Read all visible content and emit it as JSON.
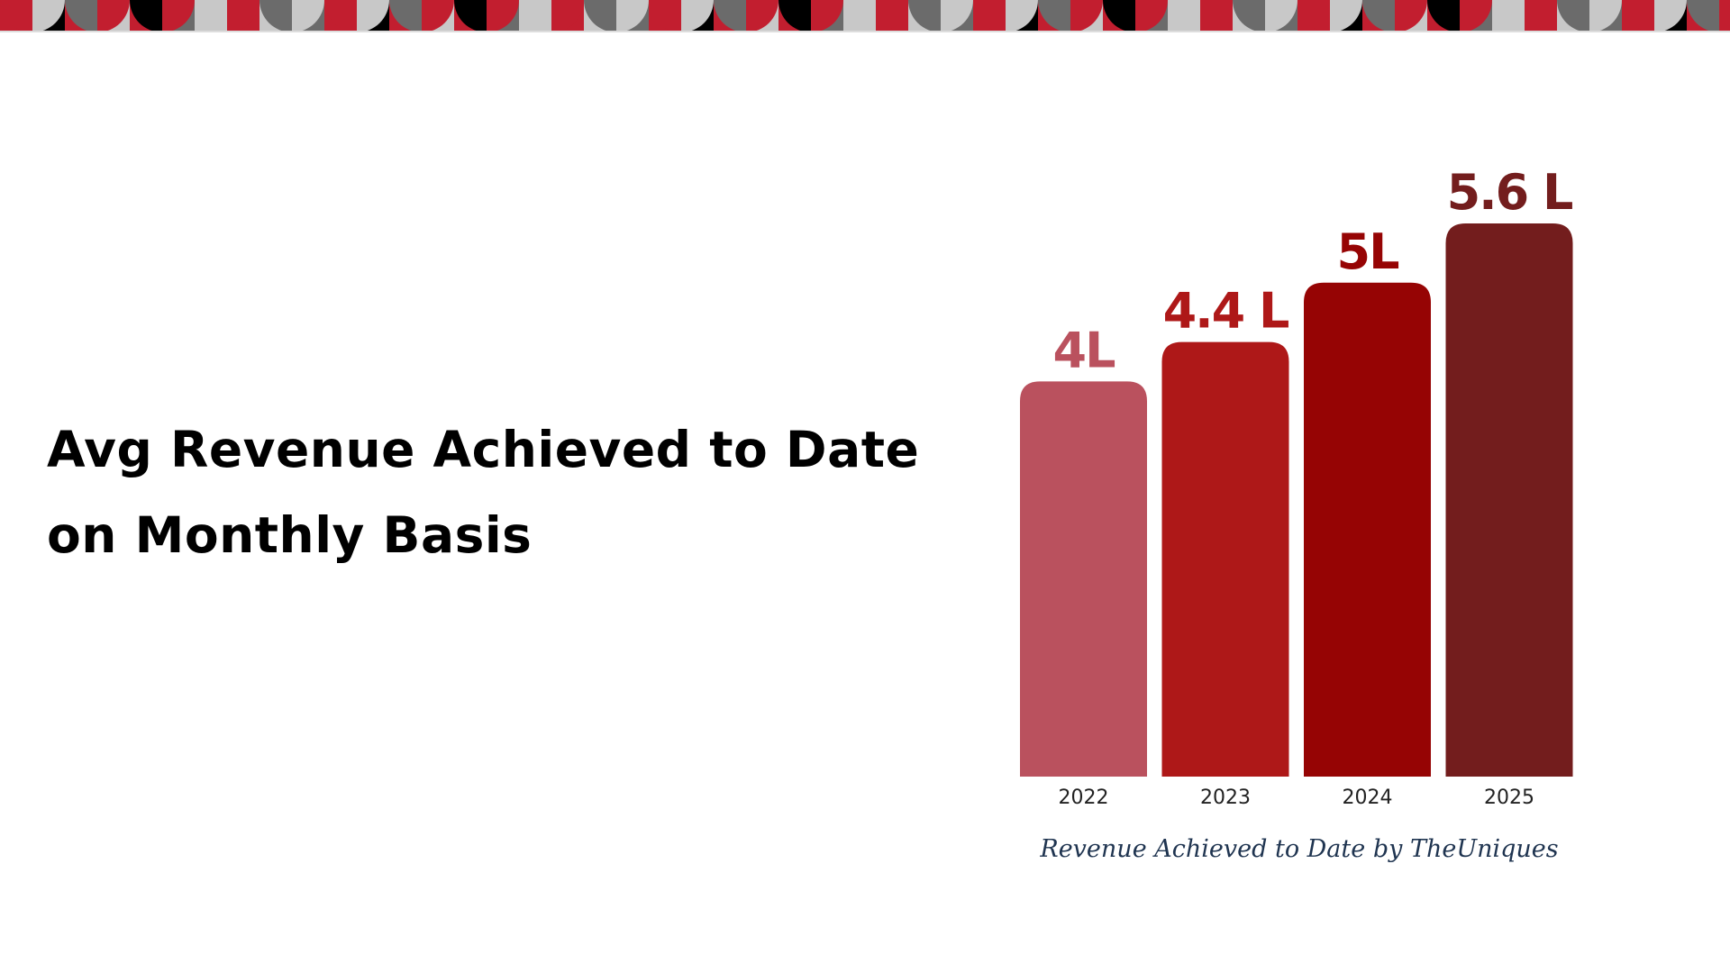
{
  "page": {
    "title_lines": [
      "Avg Revenue Achieved to Date",
      "on Monthly Basis"
    ]
  },
  "colors": {
    "pattern": [
      "#c21e2f",
      "#c8c8c8",
      "#6b6b6b",
      "#000000"
    ],
    "bars": [
      "#ba515e",
      "#ae1818",
      "#960404",
      "#731d1d"
    ],
    "tick_text": "#222222",
    "caption_text": "#1f3450"
  },
  "chart_data": {
    "type": "bar",
    "categories": [
      "2022",
      "2023",
      "2024",
      "2025"
    ],
    "values": [
      4,
      4.4,
      5,
      5.6
    ],
    "data_labels": [
      "4L",
      "4.4 L",
      "5L",
      "5.6 L"
    ],
    "caption": "Revenue Achieved to Date by TheUniques",
    "ylim": [
      0,
      5.6
    ],
    "grid": false,
    "legend": "none"
  }
}
